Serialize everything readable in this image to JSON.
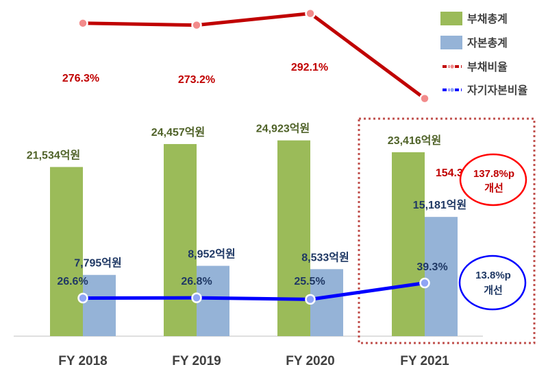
{
  "chart_data": {
    "type": "bar",
    "categories": [
      "FY 2018",
      "FY 2019",
      "FY 2020",
      "FY 2021"
    ],
    "series": [
      {
        "name": "부채총계",
        "kind": "bar",
        "color": "#9bbb59",
        "values": [
          21534,
          24457,
          24923,
          23416
        ],
        "labels": [
          "21,534억원",
          "24,457억원",
          "24,923억원",
          "23,416억원"
        ]
      },
      {
        "name": "자본총계",
        "kind": "bar",
        "color": "#95b3d7",
        "values": [
          7795,
          8952,
          8533,
          15181
        ],
        "labels": [
          "7,795억원",
          "8,952억원",
          "8,533억원",
          "15,181억원"
        ]
      },
      {
        "name": "부채비율",
        "kind": "line",
        "color": "#c00000",
        "values": [
          276.3,
          273.2,
          292.1,
          154.3
        ],
        "labels": [
          "276.3%",
          "273.2%",
          "292.1%",
          "154.3%"
        ]
      },
      {
        "name": "자기자본비율",
        "kind": "line",
        "color": "#0000ff",
        "values": [
          26.6,
          26.8,
          25.5,
          39.3
        ],
        "labels": [
          "26.6%",
          "26.8%",
          "25.5%",
          "39.3%"
        ]
      }
    ],
    "legend_position": "top-right",
    "grid": false,
    "highlight": {
      "category": "FY 2021",
      "style": "dotted-box"
    },
    "annotations": [
      {
        "line1": "137.8%p",
        "line2": "개선",
        "color": "#c00000"
      },
      {
        "line1": "13.8%p",
        "line2": "개선",
        "color": "#0000ff"
      }
    ]
  }
}
